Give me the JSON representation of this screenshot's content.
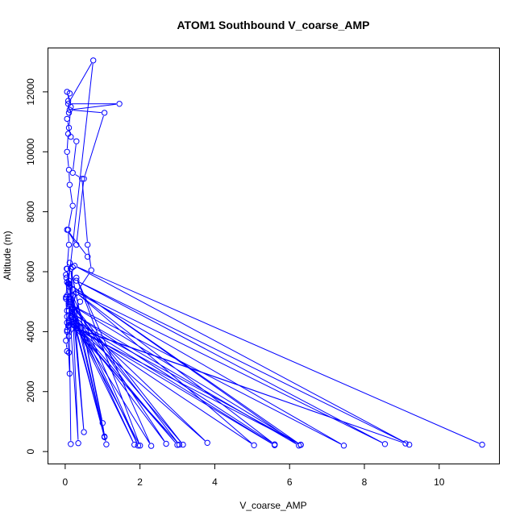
{
  "chart_data": {
    "type": "line",
    "title": "ATOM1 Southbound V_coarse_AMP",
    "xlabel": "V_coarse_AMP",
    "ylabel": "Altitude (m)",
    "xlim": [
      -0.45,
      11.6
    ],
    "ylim": [
      -400,
      13450
    ],
    "x_ticks": [
      0,
      2,
      4,
      6,
      8,
      10
    ],
    "y_ticks": [
      0,
      2000,
      4000,
      6000,
      8000,
      10000,
      12000
    ],
    "color": "#0000ff",
    "grid": false,
    "legend": "none",
    "series": [
      {
        "x": [
          0.3,
          0.15,
          0.05,
          0.1,
          0.08,
          0.2,
          0.12,
          0.1,
          0.05,
          0.08,
          0.1,
          0.15,
          0.05,
          0.12,
          0.08,
          0.1,
          0.05,
          0.15,
          0.3,
          0.2,
          0.45,
          0.6,
          0.7,
          0.3,
          0.1,
          0.05
        ],
        "y": [
          4200,
          5200,
          6100,
          6900,
          7400,
          8200,
          8900,
          9400,
          10000,
          10600,
          10800,
          11500,
          12000,
          11950,
          11700,
          11300,
          11100,
          10500,
          10350,
          9300,
          9100,
          6900,
          6050,
          5300,
          4400,
          4000
        ]
      },
      {
        "x": [
          0.6,
          0.05,
          0.3,
          0.5,
          1.05,
          0.12,
          1.45,
          0.08,
          0.75,
          0.05,
          0.02,
          0.05,
          0.03,
          0.02,
          0.04,
          0.15,
          0.2,
          0.12,
          0.1,
          0.08,
          0.05
        ],
        "y": [
          6500,
          7400,
          6900,
          9100,
          11300,
          11400,
          11600,
          11600,
          13050,
          5200,
          5150,
          5650,
          5800,
          5900,
          6100,
          5100,
          6150,
          6300,
          5700,
          5600,
          4700
        ]
      },
      {
        "x": [
          0.12,
          0.3,
          0.1,
          0.25,
          0.4,
          0.15,
          0.1,
          0.08,
          0.05,
          0.02,
          0.05,
          0.1,
          0.12,
          0.05,
          0.02
        ],
        "y": [
          5600,
          4200,
          3850,
          4650,
          5000,
          4500,
          4350,
          4200,
          4050,
          3700,
          3350,
          3300,
          2600,
          4300,
          5100
        ]
      },
      {
        "x": [
          11.15,
          0.25,
          9.2,
          0.3,
          8.55,
          0.2,
          7.45,
          0.15,
          6.3,
          0.1,
          6.25,
          0.2,
          5.6,
          0.3,
          5.05,
          0.25,
          3.8,
          0.1,
          3.15,
          0.15,
          2.7,
          0.2,
          2.3,
          0.3,
          2.0,
          0.25,
          1.85,
          0.1,
          1.1,
          0.15,
          0.5,
          0.2,
          0.35,
          0.1,
          0.15
        ],
        "y": [
          230,
          6200,
          230,
          5700,
          250,
          5400,
          200,
          4900,
          220,
          5600,
          200,
          4600,
          240,
          5300,
          210,
          4200,
          290,
          4700,
          230,
          5000,
          260,
          4400,
          190,
          5800,
          200,
          4300,
          230,
          4900,
          240,
          6100,
          650,
          4800,
          280,
          5100,
          250
        ]
      },
      {
        "x": [
          0.15,
          1.0,
          1.05,
          0.2,
          1.95,
          0.1,
          3.05,
          0.1,
          5.6,
          0.05,
          6.3,
          0.1,
          9.1,
          0.3,
          3.0,
          0.25,
          1.05,
          0.1
        ],
        "y": [
          6100,
          950,
          500,
          5200,
          200,
          5000,
          230,
          4300,
          210,
          4500,
          230,
          4200,
          270,
          4100,
          220,
          4300,
          480,
          5500
        ]
      }
    ]
  }
}
